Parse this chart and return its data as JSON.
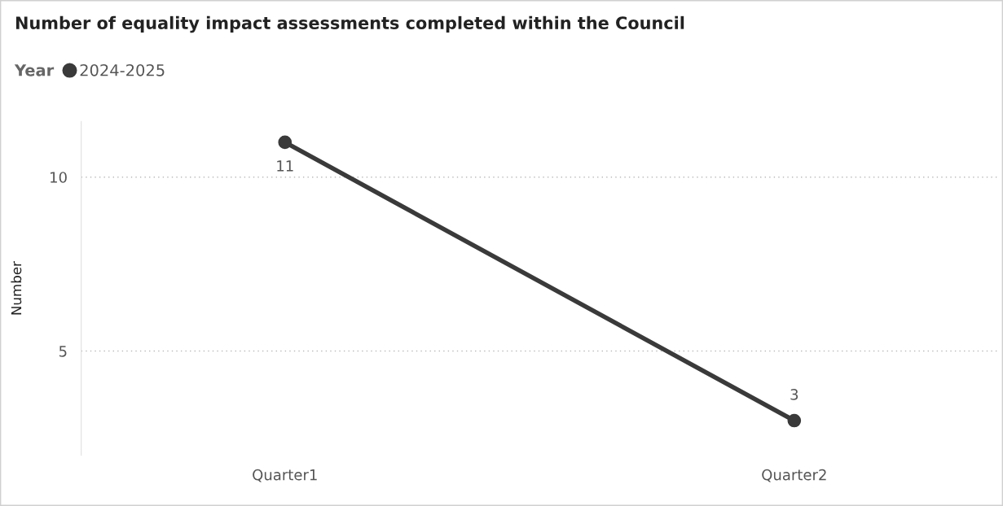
{
  "chart_data": {
    "type": "line",
    "title": "Number of equality impact assessments completed within the Council",
    "ylabel": "Number",
    "legend_title": "Year",
    "legend": "top left",
    "categories": [
      "Quarter1",
      "Quarter2"
    ],
    "series": [
      {
        "name": "2024-2025",
        "color": "#3a3a3a",
        "values": [
          11,
          3
        ]
      }
    ],
    "ylim": [
      2,
      11.6
    ],
    "yticks": [
      5,
      10
    ],
    "grid": "y",
    "marker": "circle",
    "line_style": "solid",
    "data_labels": true
  }
}
